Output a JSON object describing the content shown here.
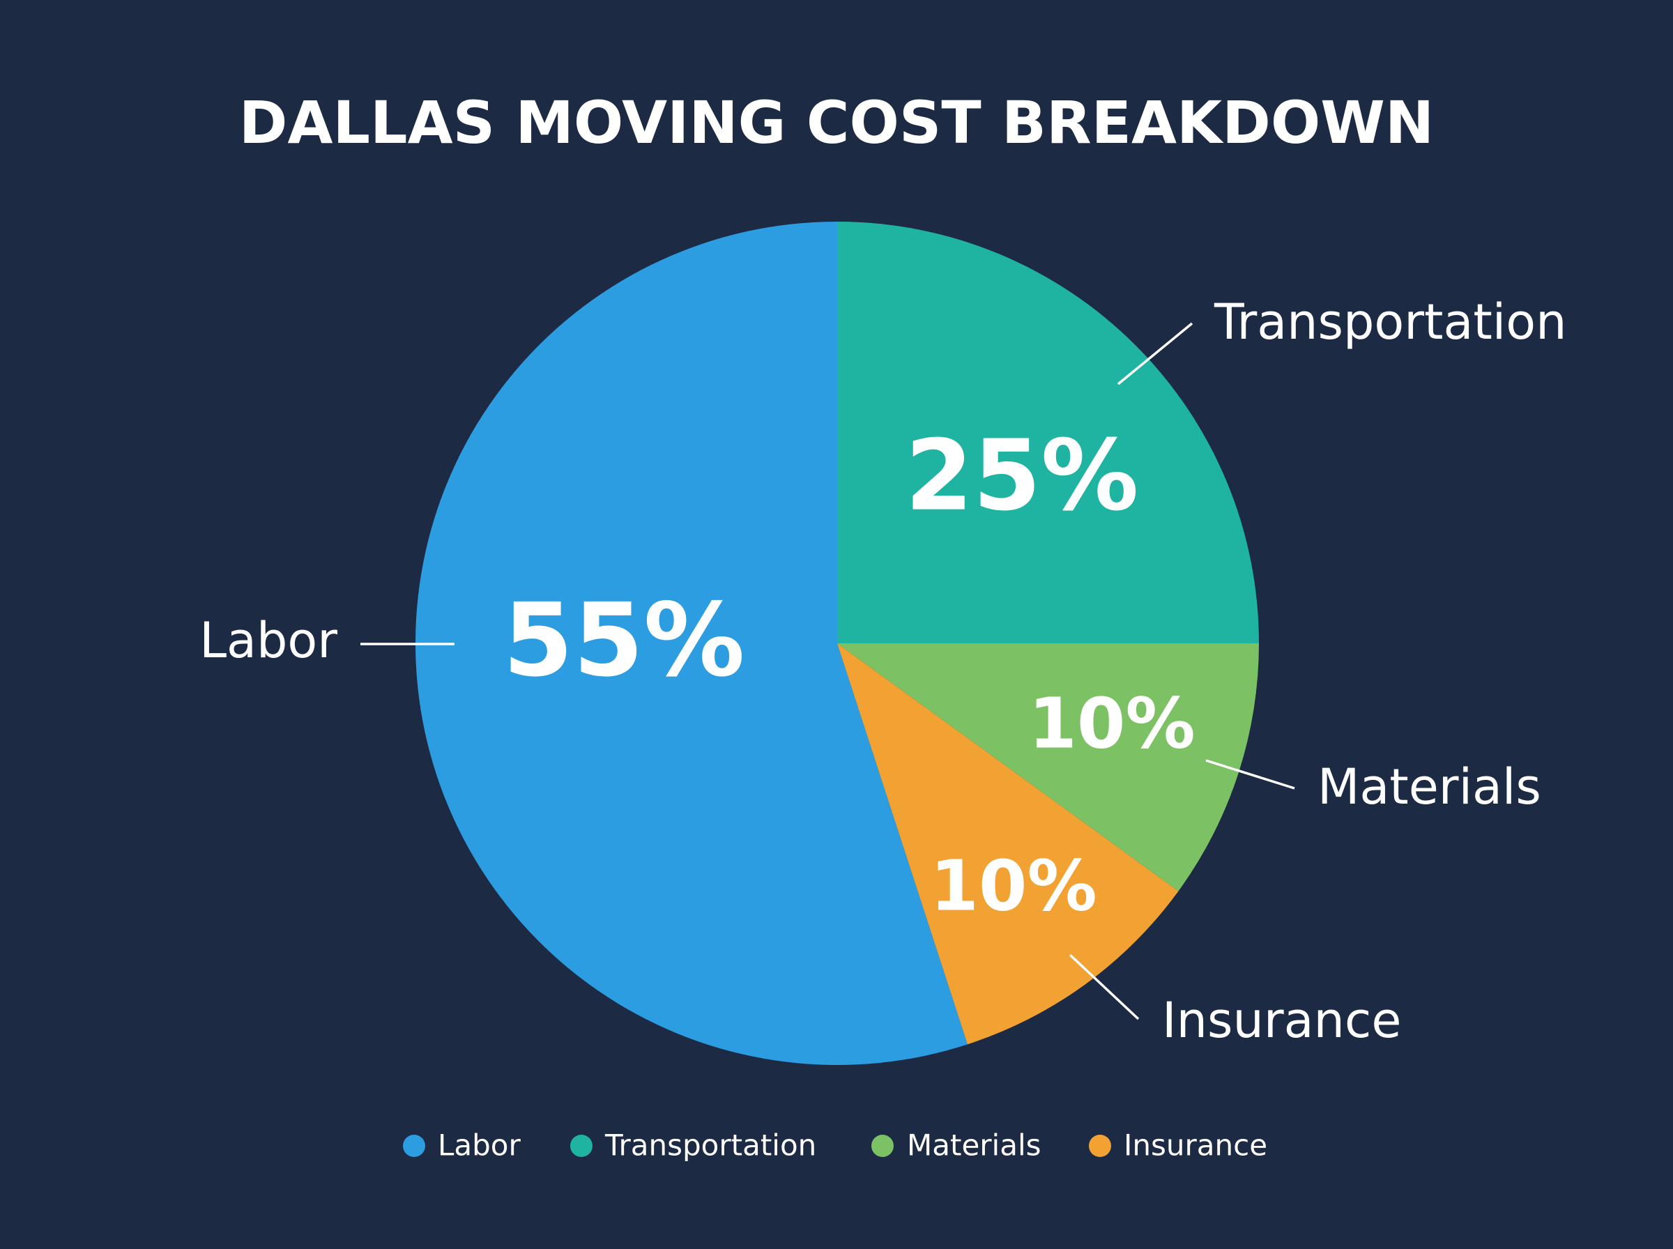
{
  "chart_data": {
    "type": "pie",
    "title": "DALLAS MOVING COST BREAKDOWN",
    "categories": [
      "Labor",
      "Transportation",
      "Materials",
      "Insurance"
    ],
    "values": [
      55,
      25,
      10,
      10
    ],
    "value_labels": [
      "55%",
      "25%",
      "10%",
      "10%"
    ],
    "colors": [
      "#2b9de0",
      "#1fb3a2",
      "#7cc264",
      "#f2a232"
    ],
    "legend": "bottom"
  }
}
